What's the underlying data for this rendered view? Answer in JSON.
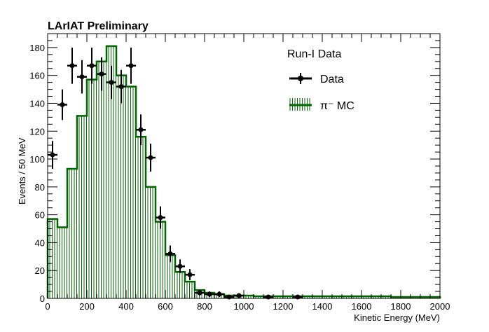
{
  "chart_data": {
    "type": "bar",
    "title": "LArIAT Preliminary",
    "xlabel": "Kinetic Energy (MeV)",
    "ylabel": "Events / 50 MeV",
    "xlim": [
      0,
      2000
    ],
    "ylim": [
      0,
      190
    ],
    "x_ticks": [
      0,
      200,
      400,
      600,
      800,
      1000,
      1200,
      1400,
      1600,
      1800,
      2000
    ],
    "y_ticks": [
      0,
      20,
      40,
      60,
      80,
      100,
      120,
      140,
      160,
      180
    ],
    "grid": false,
    "legend_placement": "top-right",
    "legend": {
      "header": "Run-I Data",
      "entries": [
        {
          "label": "Data",
          "color": "#000000"
        },
        {
          "label": "π⁻ MC",
          "color": "#006400"
        }
      ]
    },
    "mc": {
      "name": "π⁻ MC",
      "color": "#006400",
      "edges": [
        0,
        50,
        100,
        150,
        200,
        250,
        300,
        350,
        400,
        450,
        500,
        550,
        600,
        650,
        700,
        750,
        800,
        850,
        900,
        950,
        1000,
        1050,
        1100,
        1150,
        1200,
        1250,
        1300,
        1750,
        2000
      ],
      "values": [
        57,
        51,
        93,
        131,
        157,
        170,
        181,
        160,
        152,
        116,
        80,
        55,
        31,
        19,
        12,
        6,
        4,
        3,
        2,
        2,
        2,
        1.5,
        1.5,
        1.5,
        1.5,
        1.5,
        1.5,
        1,
        0
      ]
    },
    "data": {
      "name": "Data",
      "color": "#000000",
      "points": [
        {
          "x": 25,
          "y": 103,
          "err": 10
        },
        {
          "x": 75,
          "y": 139,
          "err": 11
        },
        {
          "x": 125,
          "y": 167,
          "err": 13
        },
        {
          "x": 175,
          "y": 159,
          "err": 12
        },
        {
          "x": 225,
          "y": 167,
          "err": 13
        },
        {
          "x": 275,
          "y": 161,
          "err": 12
        },
        {
          "x": 325,
          "y": 155,
          "err": 12
        },
        {
          "x": 375,
          "y": 152,
          "err": 12
        },
        {
          "x": 425,
          "y": 167,
          "err": 13
        },
        {
          "x": 475,
          "y": 121,
          "err": 11
        },
        {
          "x": 525,
          "y": 101,
          "err": 10
        },
        {
          "x": 575,
          "y": 58,
          "err": 8
        },
        {
          "x": 625,
          "y": 32,
          "err": 6
        },
        {
          "x": 675,
          "y": 23,
          "err": 5
        },
        {
          "x": 725,
          "y": 17,
          "err": 4
        },
        {
          "x": 775,
          "y": 4,
          "err": 2
        },
        {
          "x": 825,
          "y": 3,
          "err": 2
        },
        {
          "x": 875,
          "y": 3,
          "err": 2
        },
        {
          "x": 925,
          "y": 1,
          "err": 1
        },
        {
          "x": 975,
          "y": 2,
          "err": 1
        },
        {
          "x": 1125,
          "y": 1,
          "err": 1
        },
        {
          "x": 1275,
          "y": 1,
          "err": 1
        }
      ]
    }
  }
}
